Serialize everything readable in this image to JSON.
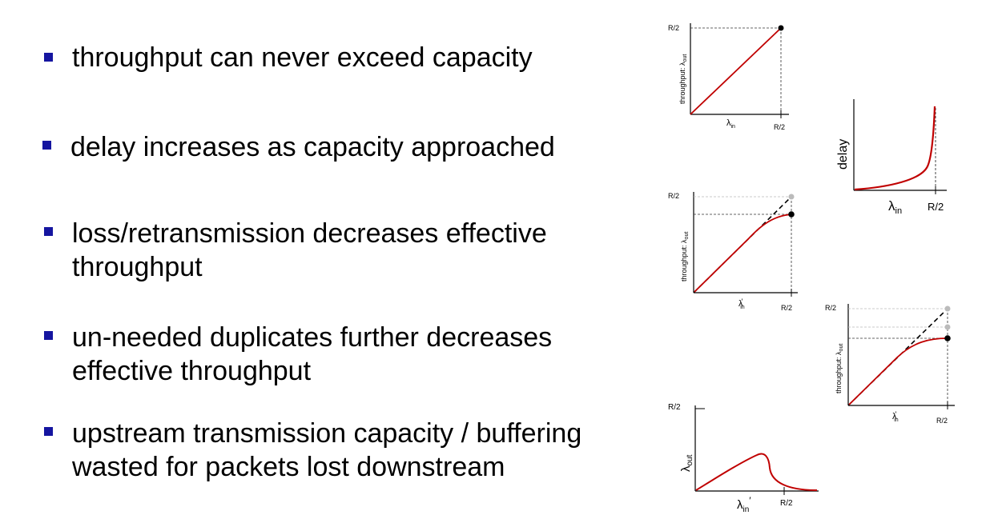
{
  "bullets": [
    {
      "lines": [
        "throughput can never exceed capacity"
      ]
    },
    {
      "lines": [
        "delay increases as capacity approached"
      ]
    },
    {
      "lines": [
        "loss/retransmission decreases effective",
        "throughput"
      ]
    },
    {
      "lines": [
        "un-needed duplicates further decreases",
        "effective throughput"
      ]
    },
    {
      "lines": [
        "upstream transmission capacity / buffering",
        "wasted for packets lost downstream"
      ]
    }
  ],
  "plots": {
    "p1": {
      "ytick": "R/2",
      "xtick": "R/2",
      "ylabel_main": "throughput: λ",
      "ylabel_sub": "out",
      "xlabel_main": "λ",
      "xlabel_sub": "in"
    },
    "delay": {
      "ylabel": "delay",
      "xtick": "R/2",
      "xlabel_main": "λ",
      "xlabel_sub": "in"
    },
    "p2": {
      "ytick": "R/2",
      "xtick": "R/2",
      "ylabel_main": "throughput: λ",
      "ylabel_sub": "out",
      "xlabel_main": "λ",
      "xlabel_sub": "in",
      "xlabel_prime": "′"
    },
    "p3": {
      "ytick": "R/2",
      "xtick": "R/2",
      "ylabel_main": "throughput: λ",
      "ylabel_sub": "out",
      "xlabel_main": "λ",
      "xlabel_sub": "in",
      "xlabel_prime": "′"
    },
    "p4": {
      "ytick": "R/2",
      "xtick": "R/2",
      "ylabel_main": "λ",
      "ylabel_sub": "out",
      "xlabel_main": "λ",
      "xlabel_sub": "in",
      "xlabel_prime": "′"
    }
  },
  "colors": {
    "bullet": "#1515a0",
    "curve": "#c00000",
    "axis": "#000000",
    "guide_dark": "#000000",
    "guide_light": "#bbbbbb"
  }
}
